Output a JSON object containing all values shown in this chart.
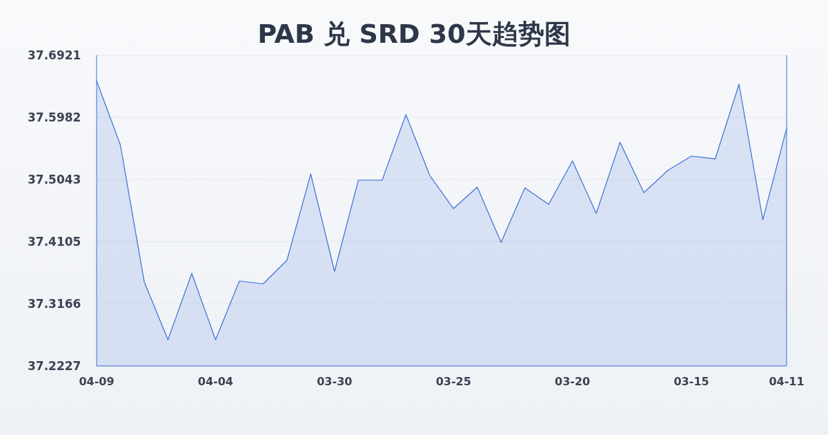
{
  "chart_data": {
    "type": "area",
    "title": "PAB 兑 SRD 30天趋势图",
    "categories": [
      "04-09",
      null,
      null,
      null,
      null,
      "04-04",
      null,
      null,
      null,
      null,
      "03-30",
      null,
      null,
      null,
      null,
      "03-25",
      null,
      null,
      null,
      null,
      "03-20",
      null,
      null,
      null,
      null,
      "03-15",
      null,
      null,
      null,
      "04-11"
    ],
    "series": [
      {
        "color": "#3a6fd8",
        "values": [
          37.6535,
          37.5565,
          37.35,
          37.2624,
          37.3625,
          37.2624,
          37.351,
          37.3468,
          37.3823,
          37.5127,
          37.3656,
          37.5033,
          37.5033,
          37.6024,
          37.5106,
          37.4605,
          37.4928,
          37.4094,
          37.4918,
          37.4668,
          37.5325,
          37.4532,
          37.5607,
          37.4845,
          37.5179,
          37.5398,
          37.5356,
          37.6483,
          37.4438,
          37.5815
        ]
      }
    ],
    "ylim": [
      37.2227,
      37.6921
    ],
    "yticks": [
      37.2227,
      37.3166,
      37.4105,
      37.5043,
      37.5982,
      37.6921
    ],
    "grid": "y"
  }
}
